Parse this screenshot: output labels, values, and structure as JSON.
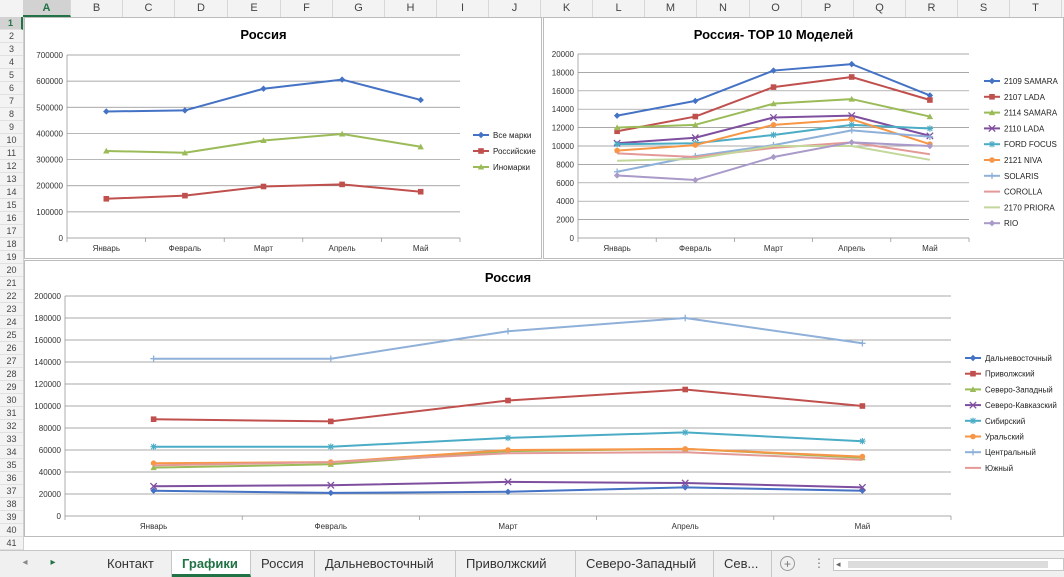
{
  "spreadsheet": {
    "columns": [
      "A",
      "B",
      "C",
      "D",
      "E",
      "F",
      "G",
      "H",
      "I",
      "J",
      "K",
      "L",
      "M",
      "N",
      "O",
      "P",
      "Q",
      "R",
      "S",
      "T"
    ],
    "selected_column": "A",
    "rows": [
      "1",
      "2",
      "3",
      "4",
      "5",
      "6",
      "7",
      "8",
      "9",
      "10",
      "11",
      "12",
      "13",
      "14",
      "15",
      "16",
      "17",
      "18",
      "19",
      "20",
      "21",
      "22",
      "23",
      "24",
      "25",
      "26",
      "27",
      "28",
      "29",
      "30",
      "31",
      "32",
      "33",
      "34",
      "35",
      "36",
      "37",
      "38",
      "39",
      "40",
      "41"
    ],
    "selected_row": "1"
  },
  "tabs": {
    "items": [
      "Контакт",
      "Графики",
      "Россия",
      "Дальневосточный",
      "Приволжский",
      "Северо-Западный",
      "Сев..."
    ],
    "active": "Графики",
    "nav_prev": "◂",
    "nav_next": "▸",
    "add": "+",
    "menu": "⋮",
    "scroll_left": "◂"
  },
  "chart_data": [
    {
      "type": "line",
      "title": "Россия",
      "categories": [
        "Январь",
        "Февраль",
        "Март",
        "Апрель",
        "Май"
      ],
      "ylim": [
        0,
        700000
      ],
      "yticks": [
        "0",
        "100000",
        "200000",
        "300000",
        "400000",
        "500000",
        "600000",
        "700000"
      ],
      "grid": true,
      "legend": "right",
      "series": [
        {
          "name": "Все марки",
          "color": "#4472c4",
          "marker": "diamond",
          "values": [
            484000,
            488000,
            571000,
            606000,
            528000
          ]
        },
        {
          "name": "Российские",
          "color": "#c0504d",
          "marker": "square",
          "values": [
            150000,
            162000,
            197000,
            205000,
            177000
          ]
        },
        {
          "name": "Иномарки",
          "color": "#9bbb59",
          "marker": "triangle",
          "values": [
            333000,
            326000,
            373000,
            398000,
            349000
          ]
        }
      ]
    },
    {
      "type": "line",
      "title": "Россия- TOP 10 Моделей",
      "categories": [
        "Январь",
        "Февраль",
        "Март",
        "Апрель",
        "Май"
      ],
      "ylim": [
        0,
        20000
      ],
      "yticks": [
        "0",
        "2000",
        "4000",
        "6000",
        "8000",
        "10000",
        "12000",
        "14000",
        "16000",
        "18000",
        "20000"
      ],
      "grid": true,
      "legend": "right",
      "series": [
        {
          "name": "2109 SAMARA",
          "color": "#4472c4",
          "marker": "diamond",
          "values": [
            13300,
            14900,
            18200,
            18900,
            15500
          ]
        },
        {
          "name": "2107 LADA",
          "color": "#c0504d",
          "marker": "square",
          "values": [
            11600,
            13200,
            16400,
            17500,
            15000
          ]
        },
        {
          "name": "2114 SAMARA",
          "color": "#9bbb59",
          "marker": "triangle",
          "values": [
            12000,
            12300,
            14600,
            15100,
            13200
          ]
        },
        {
          "name": "2110 LADA",
          "color": "#7f4f9f",
          "marker": "x",
          "values": [
            10300,
            10900,
            13100,
            13300,
            11100
          ]
        },
        {
          "name": "FORD FOCUS",
          "color": "#4bacc6",
          "marker": "star",
          "values": [
            10200,
            10300,
            11200,
            12300,
            11900
          ]
        },
        {
          "name": "2121 NIVA",
          "color": "#f79646",
          "marker": "circle",
          "values": [
            9500,
            10100,
            12300,
            12900,
            10200
          ]
        },
        {
          "name": "SOLARIS",
          "color": "#8fb0d8",
          "marker": "plus",
          "values": [
            7200,
            8900,
            10100,
            11700,
            11000
          ]
        },
        {
          "name": "COROLLA",
          "color": "#e39a97",
          "marker": "none",
          "values": [
            9200,
            8800,
            9800,
            10400,
            9100
          ]
        },
        {
          "name": "2170 PRIORA",
          "color": "#c3d79b",
          "marker": "none",
          "values": [
            8400,
            8600,
            10000,
            10000,
            8500
          ]
        },
        {
          "name": "RIO",
          "color": "#a99ac9",
          "marker": "diamond",
          "values": [
            6800,
            6300,
            8800,
            10400,
            10000
          ]
        }
      ]
    },
    {
      "type": "line",
      "title": "Россия",
      "categories": [
        "Январь",
        "Февраль",
        "Март",
        "Апрель",
        "Май"
      ],
      "ylim": [
        0,
        200000
      ],
      "yticks": [
        "0",
        "20000",
        "40000",
        "60000",
        "80000",
        "100000",
        "120000",
        "140000",
        "160000",
        "180000",
        "200000"
      ],
      "grid": true,
      "legend": "right",
      "series": [
        {
          "name": "Дальневосточный",
          "color": "#4472c4",
          "marker": "diamond",
          "values": [
            23000,
            21000,
            22000,
            26000,
            23000
          ]
        },
        {
          "name": "Приволжский",
          "color": "#c0504d",
          "marker": "square",
          "values": [
            88000,
            86000,
            105000,
            115000,
            100000
          ]
        },
        {
          "name": "Северо-Западный",
          "color": "#9bbb59",
          "marker": "triangle",
          "values": [
            44000,
            47000,
            59000,
            61000,
            53000
          ]
        },
        {
          "name": "Северо-Кавказский",
          "color": "#7f4f9f",
          "marker": "x",
          "values": [
            27000,
            28000,
            31000,
            30000,
            26000
          ]
        },
        {
          "name": "Сибирский",
          "color": "#4bacc6",
          "marker": "star",
          "values": [
            63000,
            63000,
            71000,
            76000,
            68000
          ]
        },
        {
          "name": "Уральский",
          "color": "#f79646",
          "marker": "circle",
          "values": [
            48000,
            49000,
            60000,
            61000,
            54000
          ]
        },
        {
          "name": "Центральный",
          "color": "#8fb0d8",
          "marker": "plus",
          "values": [
            143000,
            143000,
            168000,
            180000,
            157000
          ]
        },
        {
          "name": "Южный",
          "color": "#e39a97",
          "marker": "none",
          "values": [
            46000,
            49000,
            57000,
            58000,
            51000
          ]
        }
      ]
    }
  ]
}
